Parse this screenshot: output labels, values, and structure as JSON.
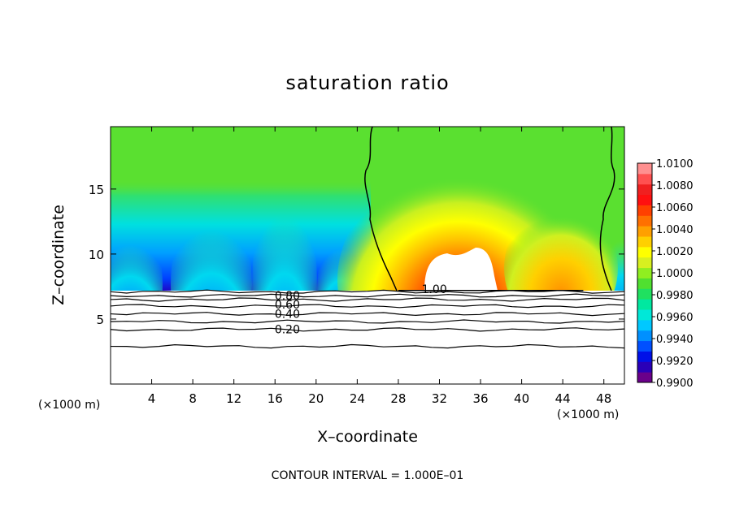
{
  "chart_data": {
    "type": "heatmap",
    "title": "saturation ratio",
    "xlabel": "X–coordinate",
    "ylabel": "Z–coordinate",
    "x_unit_label_left": "(×1000 m)",
    "x_unit_label_right": "(×1000 m)",
    "footer": "CONTOUR INTERVAL = 1.000E–01",
    "xlim": [
      0,
      50
    ],
    "ylim": [
      0,
      19.8
    ],
    "xticks": [
      4,
      8,
      12,
      16,
      20,
      24,
      28,
      32,
      36,
      40,
      44,
      48
    ],
    "yticks": [
      5,
      10,
      15
    ],
    "colorbar": {
      "labels": [
        "1.0100",
        "1.0080",
        "1.0060",
        "1.0040",
        "1.0020",
        "1.0000",
        "0.9980",
        "0.9960",
        "0.9940",
        "0.9920",
        "0.9900"
      ],
      "min": 0.99,
      "max": 1.01,
      "colors": [
        "#6a008a",
        "#2a00b8",
        "#0010e8",
        "#0050ff",
        "#0090ff",
        "#00c8ff",
        "#00e8d8",
        "#00e8a0",
        "#20e060",
        "#50e030",
        "#90ee20",
        "#d8f020",
        "#ffff00",
        "#ffd000",
        "#ffa000",
        "#ff7000",
        "#ff4000",
        "#ff1010",
        "#f02020",
        "#ff5050",
        "#ff9090"
      ]
    },
    "contour_labels": [
      "1.00",
      "0.80",
      "0.60",
      "0.40",
      "0.20"
    ],
    "contour_levels": [
      {
        "label": "0.20",
        "z": 4.2
      },
      {
        "label": "0.40",
        "z": 5.4
      },
      {
        "label": "0.60",
        "z": 6.0
      },
      {
        "label": "0.80",
        "z": 6.5
      },
      {
        "label": "",
        "z": 2.9
      },
      {
        "label": "",
        "z": 4.8
      },
      {
        "label": "",
        "z": 6.8
      },
      {
        "label": "",
        "z": 7.1
      }
    ],
    "cloud_base_z": 7.2
  }
}
